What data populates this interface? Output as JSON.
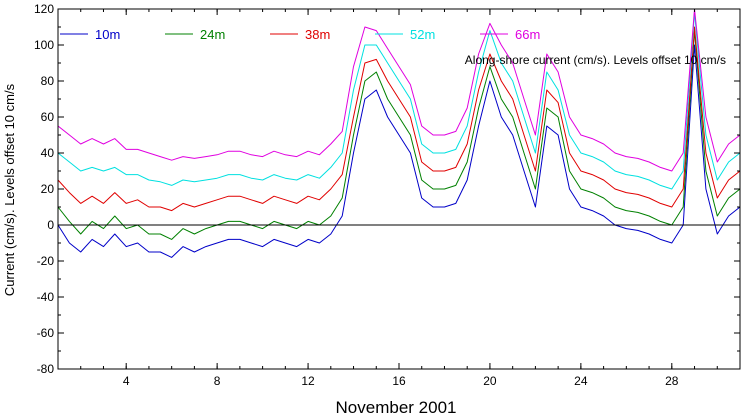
{
  "chart_data": {
    "type": "line",
    "title": "Along-shore current (cm/s). Levels offset 10 cm/s",
    "xlabel": "November 2001",
    "ylabel": "Current (cm/s). Levels offset 10 cm/s",
    "xlim": [
      1,
      31
    ],
    "ylim": [
      -80,
      120
    ],
    "x_ticks": [
      4,
      8,
      12,
      16,
      20,
      24,
      28
    ],
    "y_ticks": [
      -80,
      -60,
      -40,
      -20,
      0,
      20,
      40,
      60,
      80,
      100,
      120
    ],
    "zero_line": true,
    "grid": false,
    "legend_position": "top",
    "colors": {
      "axis": "#000000",
      "zero_line": "#000000"
    },
    "x": [
      1,
      1.5,
      2,
      2.5,
      3,
      3.5,
      4,
      4.5,
      5,
      5.5,
      6,
      6.5,
      7,
      7.5,
      8,
      8.5,
      9,
      9.5,
      10,
      10.5,
      11,
      11.5,
      12,
      12.5,
      13,
      13.5,
      14,
      14.5,
      15,
      15.5,
      16,
      16.5,
      17,
      17.5,
      18,
      18.5,
      19,
      19.5,
      20,
      20.5,
      21,
      21.5,
      22,
      22.5,
      23,
      23.5,
      24,
      24.5,
      25,
      25.5,
      26,
      26.5,
      27,
      27.5,
      28,
      28.5,
      29,
      29.5,
      30,
      30.5,
      31
    ],
    "series": [
      {
        "name": "10m",
        "color": "#0000c8",
        "values": [
          0,
          -10,
          -15,
          -8,
          -12,
          -5,
          -12,
          -10,
          -15,
          -15,
          -18,
          -12,
          -15,
          -12,
          -10,
          -8,
          -8,
          -10,
          -12,
          -8,
          -10,
          -12,
          -8,
          -10,
          -5,
          5,
          40,
          70,
          75,
          60,
          50,
          40,
          15,
          10,
          10,
          12,
          25,
          55,
          80,
          60,
          50,
          30,
          10,
          55,
          50,
          20,
          10,
          8,
          5,
          0,
          -2,
          -3,
          -5,
          -8,
          -10,
          0,
          100,
          20,
          -5,
          5,
          10
        ]
      },
      {
        "name": "24m",
        "color": "#008000",
        "values": [
          10,
          2,
          -5,
          2,
          -2,
          5,
          -2,
          0,
          -5,
          -5,
          -8,
          -2,
          -5,
          -2,
          0,
          2,
          2,
          0,
          -2,
          2,
          0,
          -2,
          2,
          0,
          5,
          15,
          50,
          80,
          85,
          70,
          60,
          50,
          25,
          20,
          20,
          22,
          35,
          65,
          88,
          70,
          60,
          40,
          20,
          65,
          60,
          30,
          20,
          18,
          15,
          10,
          8,
          7,
          5,
          2,
          0,
          10,
          108,
          30,
          5,
          15,
          20
        ]
      },
      {
        "name": "38m",
        "color": "#e00000",
        "values": [
          25,
          18,
          12,
          16,
          12,
          18,
          12,
          14,
          10,
          10,
          8,
          12,
          10,
          12,
          14,
          16,
          16,
          14,
          12,
          16,
          14,
          12,
          16,
          14,
          20,
          28,
          60,
          90,
          92,
          80,
          70,
          60,
          35,
          30,
          30,
          32,
          45,
          75,
          95,
          80,
          70,
          50,
          30,
          75,
          68,
          40,
          30,
          28,
          25,
          20,
          18,
          17,
          15,
          12,
          10,
          20,
          110,
          40,
          15,
          25,
          30
        ]
      },
      {
        "name": "52m",
        "color": "#00e0e0",
        "values": [
          40,
          35,
          30,
          32,
          30,
          32,
          28,
          28,
          25,
          24,
          22,
          25,
          24,
          25,
          26,
          28,
          28,
          26,
          25,
          28,
          26,
          25,
          28,
          26,
          32,
          40,
          75,
          100,
          100,
          90,
          80,
          70,
          45,
          40,
          40,
          42,
          55,
          85,
          108,
          90,
          80,
          60,
          40,
          85,
          75,
          50,
          40,
          38,
          35,
          30,
          28,
          27,
          25,
          22,
          20,
          30,
          118,
          50,
          25,
          35,
          40
        ]
      },
      {
        "name": "66m",
        "color": "#e000e0",
        "values": [
          55,
          50,
          45,
          48,
          45,
          48,
          42,
          42,
          40,
          38,
          36,
          38,
          37,
          38,
          39,
          41,
          41,
          39,
          38,
          41,
          39,
          38,
          41,
          39,
          45,
          52,
          88,
          110,
          108,
          98,
          88,
          78,
          55,
          50,
          50,
          52,
          65,
          95,
          112,
          100,
          90,
          70,
          50,
          95,
          85,
          60,
          50,
          48,
          45,
          40,
          38,
          37,
          35,
          32,
          30,
          40,
          120,
          60,
          35,
          45,
          50
        ]
      }
    ]
  }
}
